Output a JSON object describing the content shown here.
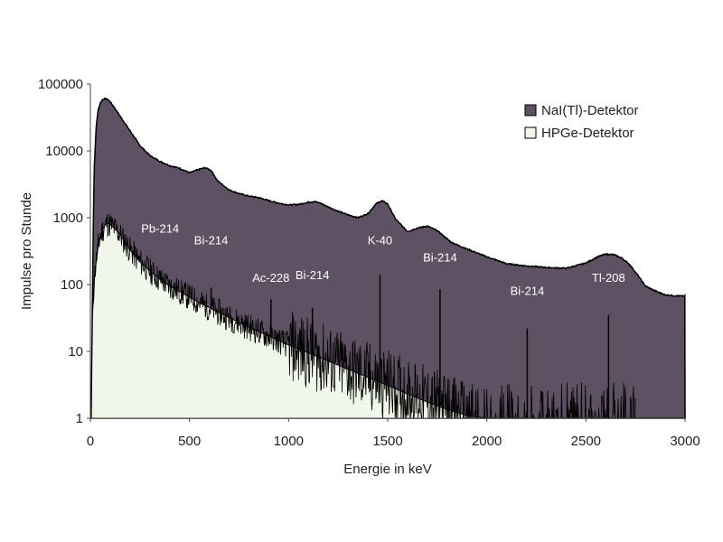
{
  "chart_data": {
    "type": "area",
    "xlabel": "Energie in keV",
    "ylabel": "Impulse pro Stunde",
    "xlim": [
      0,
      3000
    ],
    "ylim": [
      1,
      100000
    ],
    "yscale": "log",
    "grid": false,
    "legend_position": "top-right",
    "x_ticks": [
      0,
      500,
      1000,
      1500,
      2000,
      2500,
      3000
    ],
    "y_ticks": [
      1,
      10,
      100,
      1000,
      10000,
      100000
    ],
    "x_tick_labels": [
      "0",
      "500",
      "1000",
      "1500",
      "2000",
      "2500",
      "3000"
    ],
    "y_tick_labels": [
      "1",
      "10",
      "100",
      "1000",
      "10000",
      "100000"
    ],
    "series": [
      {
        "name": "NaI(Tl)-Detektor",
        "color": "#5e5163",
        "x": [
          5,
          10,
          15,
          20,
          30,
          40,
          50,
          60,
          70,
          80,
          90,
          100,
          120,
          150,
          200,
          250,
          300,
          350,
          400,
          450,
          500,
          550,
          580,
          610,
          640,
          700,
          750,
          800,
          850,
          900,
          950,
          1000,
          1050,
          1100,
          1130,
          1160,
          1200,
          1250,
          1300,
          1350,
          1400,
          1440,
          1470,
          1500,
          1540,
          1600,
          1650,
          1700,
          1750,
          1780,
          1820,
          1900,
          2000,
          2100,
          2200,
          2300,
          2400,
          2500,
          2560,
          2600,
          2640,
          2680,
          2720,
          2760,
          2800,
          2850,
          2900,
          2950,
          3000
        ],
        "values": [
          2,
          40,
          1000,
          6000,
          25000,
          42000,
          52000,
          58000,
          60000,
          60000,
          58000,
          54000,
          45000,
          33000,
          20000,
          12000,
          8500,
          7000,
          6000,
          5500,
          4700,
          5300,
          5600,
          5100,
          3600,
          2600,
          2300,
          2100,
          2000,
          1800,
          1650,
          1550,
          1580,
          1700,
          1750,
          1650,
          1450,
          1250,
          1100,
          1000,
          1150,
          1600,
          1800,
          1600,
          950,
          620,
          700,
          750,
          640,
          540,
          430,
          340,
          260,
          205,
          190,
          180,
          175,
          210,
          260,
          285,
          280,
          250,
          200,
          140,
          95,
          80,
          70,
          68,
          67
        ]
      },
      {
        "name": "HPGe-Detektor",
        "color": "#f0f7ea",
        "x": [
          5,
          10,
          20,
          30,
          40,
          50,
          60,
          70,
          80,
          90,
          100,
          120,
          150,
          200,
          250,
          300,
          350,
          400,
          500,
          600,
          700,
          800,
          900,
          1000,
          1100,
          1200,
          1300,
          1400,
          1500,
          1600,
          1700,
          1800,
          1900,
          2000,
          2100,
          2200,
          2300,
          2400,
          2500,
          2600,
          2700,
          2800,
          2900,
          3000
        ],
        "values": [
          1,
          30,
          130,
          230,
          380,
          520,
          640,
          750,
          810,
          820,
          790,
          700,
          560,
          330,
          220,
          160,
          120,
          95,
          65,
          45,
          32,
          23,
          17,
          12.5,
          9.5,
          7.2,
          5.4,
          4.1,
          3.1,
          2.3,
          1.75,
          1.35,
          1.1,
          1,
          1,
          1,
          1,
          1,
          1,
          1,
          1,
          1,
          1,
          1
        ]
      }
    ],
    "peaks": [
      {
        "label": "Pb-214",
        "energy": 352,
        "height": 160,
        "label_y": 600
      },
      {
        "label": "Bi-214",
        "energy": 609,
        "height": 90,
        "label_y": 400
      },
      {
        "label": "Ac-228",
        "energy": 911,
        "height": 60,
        "label_y": 110
      },
      {
        "label": "Bi-214",
        "energy": 1120,
        "height": 45,
        "label_y": 120
      },
      {
        "label": "K-40",
        "energy": 1461,
        "height": 140,
        "label_y": 400
      },
      {
        "label": "Bi-214",
        "energy": 1764,
        "height": 85,
        "label_y": 220
      },
      {
        "label": "Bi-214",
        "energy": 2204,
        "height": 22,
        "label_y": 70
      },
      {
        "label": "Tl-208",
        "energy": 2614,
        "height": 35,
        "label_y": 110
      }
    ]
  }
}
